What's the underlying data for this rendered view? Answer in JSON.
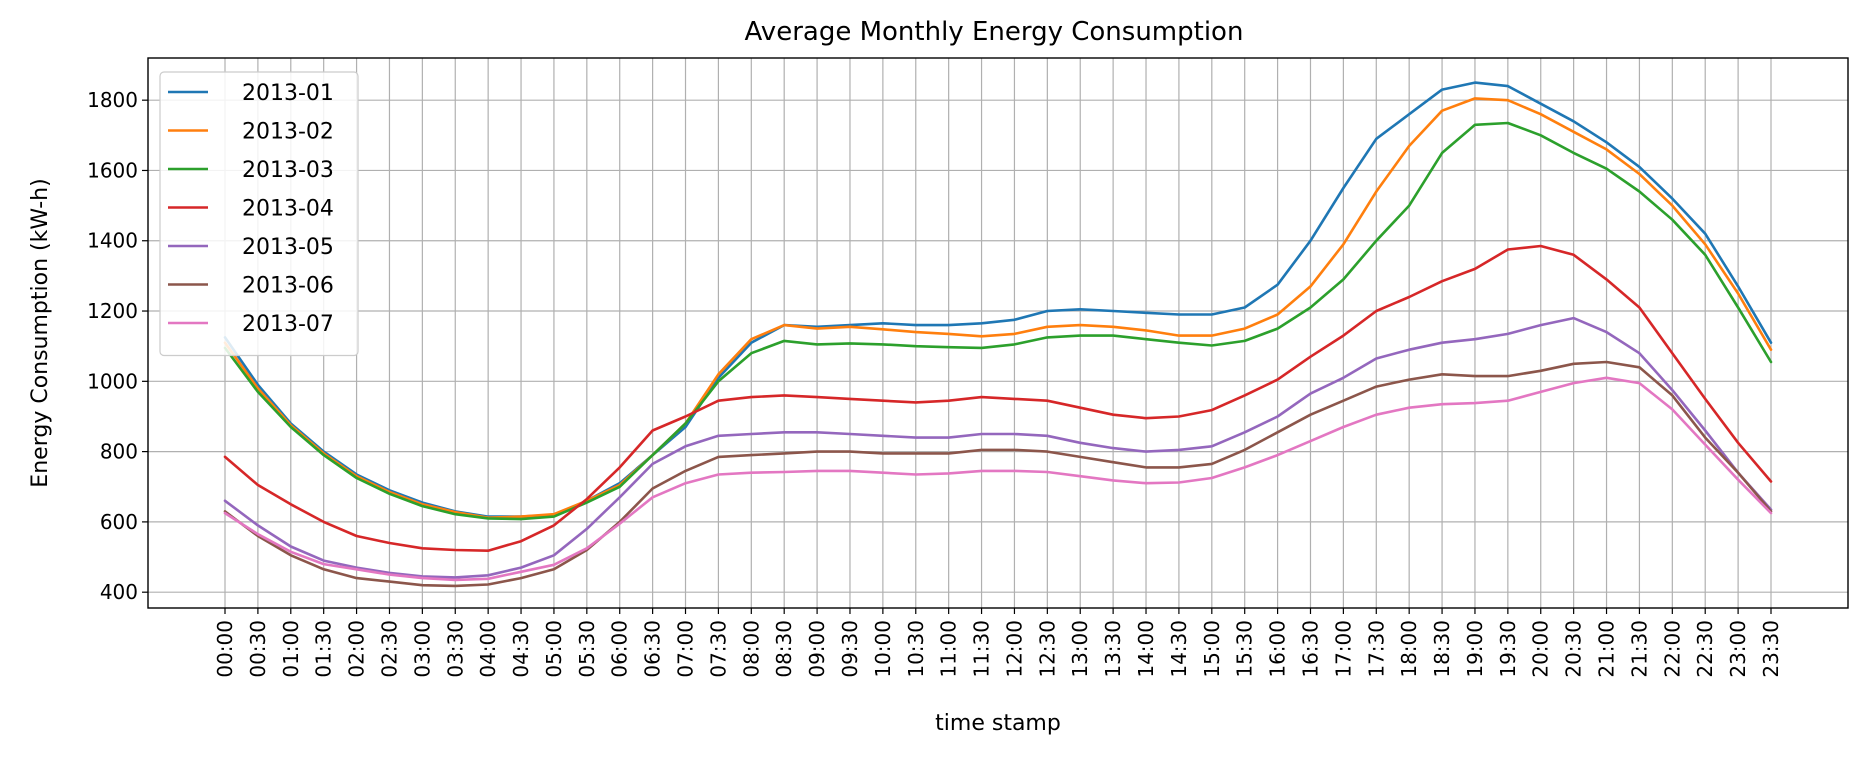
{
  "chart_data": {
    "type": "line",
    "title": "Average Monthly Energy Consumption",
    "xlabel": "time stamp",
    "ylabel": "Energy Consumption (kW-h)",
    "ylim": [
      355,
      1920
    ],
    "yticks": [
      400,
      600,
      800,
      1000,
      1200,
      1400,
      1600,
      1800
    ],
    "grid": true,
    "legend_position": "top-left",
    "categories": [
      "00:00",
      "00:30",
      "01:00",
      "01:30",
      "02:00",
      "02:30",
      "03:00",
      "03:30",
      "04:00",
      "04:30",
      "05:00",
      "05:30",
      "06:00",
      "06:30",
      "07:00",
      "07:30",
      "08:00",
      "08:30",
      "09:00",
      "09:30",
      "10:00",
      "10:30",
      "11:00",
      "11:30",
      "12:00",
      "12:30",
      "13:00",
      "13:30",
      "14:00",
      "14:30",
      "15:00",
      "15:30",
      "16:00",
      "16:30",
      "17:00",
      "17:30",
      "18:00",
      "18:30",
      "19:00",
      "19:30",
      "20:00",
      "20:30",
      "21:00",
      "21:30",
      "22:00",
      "22:30",
      "23:00",
      "23:30"
    ],
    "series": [
      {
        "name": "2013-01",
        "color": "#1f77b4",
        "values": [
          1125,
          990,
          880,
          800,
          735,
          690,
          655,
          630,
          615,
          615,
          620,
          660,
          710,
          790,
          870,
          1010,
          1110,
          1160,
          1155,
          1160,
          1165,
          1160,
          1160,
          1165,
          1175,
          1200,
          1205,
          1200,
          1195,
          1190,
          1190,
          1210,
          1275,
          1400,
          1550,
          1690,
          1760,
          1830,
          1850,
          1840,
          1790,
          1740,
          1680,
          1610,
          1520,
          1420,
          1270,
          1110
        ]
      },
      {
        "name": "2013-02",
        "color": "#ff7f0e",
        "values": [
          1110,
          980,
          875,
          795,
          730,
          685,
          650,
          628,
          612,
          615,
          622,
          660,
          705,
          790,
          880,
          1020,
          1120,
          1160,
          1150,
          1155,
          1148,
          1140,
          1135,
          1128,
          1135,
          1155,
          1160,
          1155,
          1145,
          1130,
          1130,
          1150,
          1190,
          1270,
          1390,
          1540,
          1670,
          1770,
          1805,
          1800,
          1760,
          1710,
          1660,
          1590,
          1500,
          1390,
          1250,
          1090
        ]
      },
      {
        "name": "2013-03",
        "color": "#2ca02c",
        "values": [
          1095,
          970,
          870,
          790,
          725,
          680,
          645,
          622,
          610,
          608,
          615,
          655,
          700,
          790,
          880,
          1000,
          1080,
          1115,
          1105,
          1108,
          1105,
          1100,
          1097,
          1095,
          1105,
          1125,
          1130,
          1130,
          1120,
          1110,
          1102,
          1115,
          1150,
          1210,
          1290,
          1400,
          1500,
          1650,
          1730,
          1735,
          1700,
          1650,
          1605,
          1540,
          1460,
          1360,
          1210,
          1055
        ]
      },
      {
        "name": "2013-04",
        "color": "#d62728",
        "values": [
          785,
          705,
          650,
          600,
          560,
          540,
          525,
          520,
          518,
          545,
          590,
          665,
          755,
          860,
          900,
          945,
          955,
          960,
          955,
          950,
          945,
          940,
          945,
          955,
          950,
          945,
          925,
          905,
          895,
          900,
          918,
          960,
          1005,
          1070,
          1130,
          1200,
          1240,
          1285,
          1320,
          1375,
          1385,
          1360,
          1290,
          1210,
          1080,
          950,
          825,
          715
        ]
      },
      {
        "name": "2013-05",
        "color": "#9467bd",
        "values": [
          660,
          590,
          530,
          490,
          470,
          455,
          445,
          442,
          448,
          470,
          505,
          580,
          670,
          765,
          815,
          845,
          850,
          855,
          855,
          850,
          845,
          840,
          840,
          850,
          850,
          845,
          825,
          810,
          800,
          805,
          815,
          855,
          900,
          965,
          1010,
          1065,
          1090,
          1110,
          1120,
          1135,
          1160,
          1180,
          1140,
          1080,
          975,
          860,
          740,
          635
        ]
      },
      {
        "name": "2013-06",
        "color": "#8c564b",
        "values": [
          630,
          560,
          505,
          465,
          440,
          430,
          420,
          418,
          422,
          440,
          465,
          520,
          600,
          695,
          745,
          785,
          790,
          795,
          800,
          800,
          795,
          795,
          795,
          805,
          805,
          800,
          785,
          770,
          755,
          755,
          765,
          805,
          855,
          905,
          945,
          985,
          1005,
          1020,
          1015,
          1015,
          1030,
          1050,
          1055,
          1040,
          960,
          840,
          740,
          630
        ]
      },
      {
        "name": "2013-07",
        "color": "#e377c2",
        "values": [
          625,
          565,
          515,
          480,
          465,
          450,
          440,
          435,
          438,
          458,
          478,
          525,
          595,
          670,
          710,
          735,
          740,
          742,
          745,
          745,
          740,
          735,
          738,
          745,
          745,
          742,
          730,
          718,
          710,
          712,
          725,
          755,
          790,
          830,
          870,
          905,
          925,
          935,
          938,
          945,
          970,
          995,
          1010,
          995,
          920,
          820,
          720,
          625
        ]
      }
    ]
  }
}
